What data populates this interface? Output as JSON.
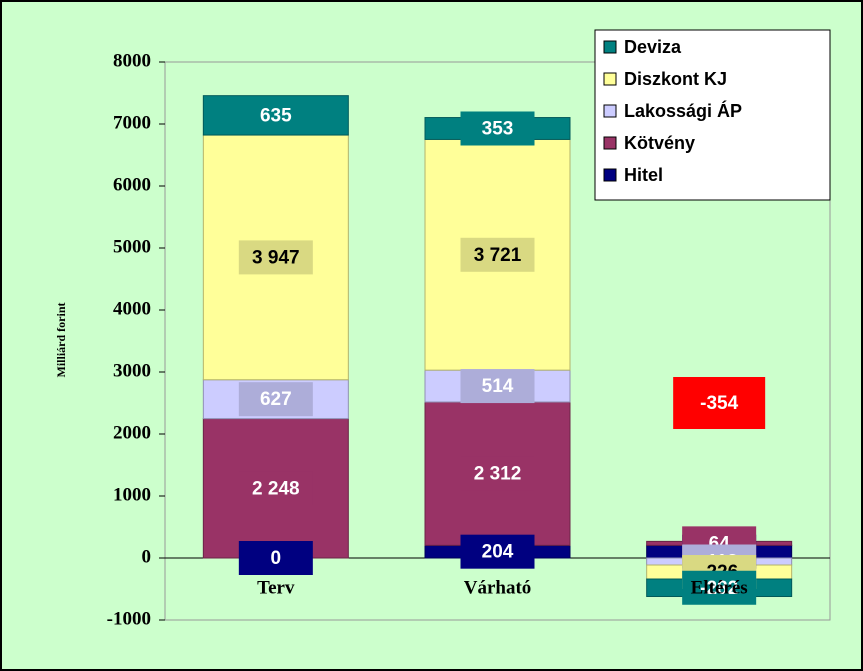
{
  "chart_data": {
    "type": "stacked_bar",
    "ylabel": "Milliárd forint",
    "categories": [
      "Terv",
      "Várható",
      "Eltérés"
    ],
    "series": [
      {
        "name": "Hitel",
        "color": "#000080",
        "values": [
          0,
          204,
          204
        ],
        "value_labels": [
          "0",
          "204",
          "204"
        ]
      },
      {
        "name": "Kötvény",
        "color": "#993366",
        "values": [
          2248,
          2312,
          64
        ],
        "value_labels": [
          "2 248",
          "2 312",
          "64"
        ]
      },
      {
        "name": "Lakossági ÁP",
        "color": "#ccccff",
        "values": [
          627,
          514,
          -113
        ],
        "value_labels": [
          "627",
          "514",
          "-113"
        ]
      },
      {
        "name": "Diszkont KJ",
        "color": "#ffff99",
        "values": [
          3947,
          3721,
          -226
        ],
        "value_labels": [
          "3 947",
          "3 721",
          "-226"
        ]
      },
      {
        "name": "Deviza",
        "color": "#008080",
        "values": [
          635,
          353,
          -282
        ],
        "value_labels": [
          "635",
          "353",
          "-282"
        ]
      }
    ],
    "annotations": [
      {
        "text": "-354",
        "value": -354,
        "category": 2
      }
    ],
    "ylim": [
      -1000,
      8000
    ],
    "yticks": [
      -1000,
      0,
      1000,
      2000,
      3000,
      4000,
      5000,
      6000,
      7000,
      8000
    ],
    "grid": false,
    "legend": "upper right"
  }
}
